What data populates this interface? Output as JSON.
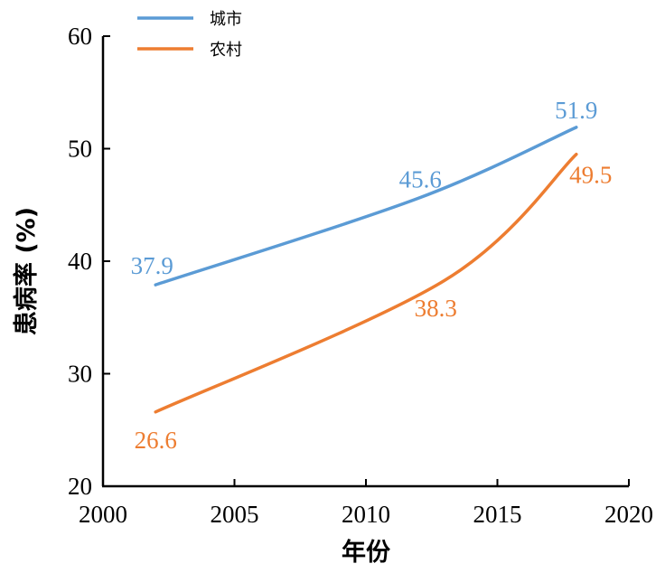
{
  "chart_data": {
    "type": "line",
    "xlabel": "年份",
    "ylabel": "患病率 (%)",
    "xlim": [
      2000,
      2020
    ],
    "ylim": [
      20,
      60
    ],
    "x_ticks": [
      2000,
      2005,
      2010,
      2015,
      2020
    ],
    "y_ticks": [
      20,
      30,
      40,
      50,
      60
    ],
    "grid": false,
    "legend_position": "top-left",
    "series": [
      {
        "name": "城市",
        "color": "#5B9BD5",
        "x": [
          2002,
          2012,
          2018
        ],
        "y": [
          37.9,
          45.6,
          51.9
        ],
        "labels": [
          "37.9",
          "45.6",
          "51.9"
        ]
      },
      {
        "name": "农村",
        "color": "#ED7D31",
        "x": [
          2002,
          2013,
          2018
        ],
        "y": [
          26.6,
          38.3,
          49.5
        ],
        "labels": [
          "26.6",
          "38.3",
          "49.5"
        ]
      }
    ]
  }
}
